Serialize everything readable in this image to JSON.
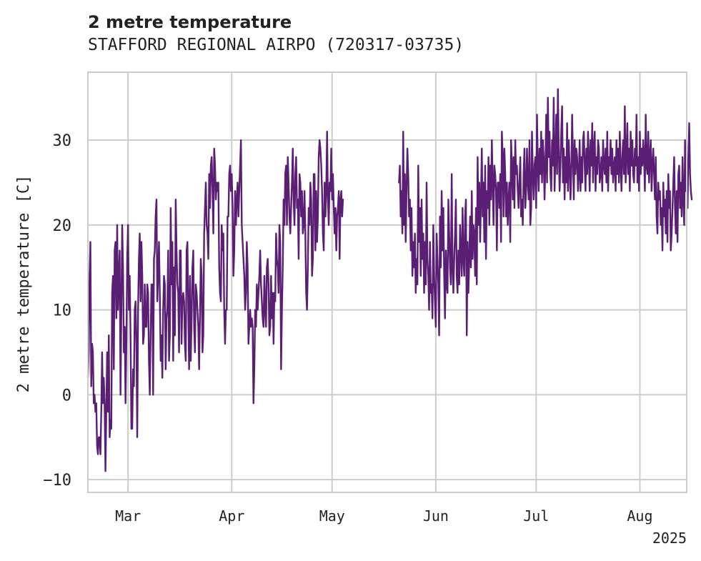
{
  "chart_data": {
    "type": "line",
    "title": "2 metre temperature",
    "subtitle": "STAFFORD REGIONAL AIRPO (720317-03735)",
    "xlabel": "",
    "ylabel": "2 metre temperature [C]",
    "xlim": [
      "2025-02-17",
      "2025-08-15"
    ],
    "ylim": [
      -11.5,
      38
    ],
    "yticks": [
      -10,
      0,
      10,
      20,
      30
    ],
    "ytick_labels": [
      "−10",
      "0",
      "10",
      "20",
      "30"
    ],
    "xticks": [
      {
        "date": "2025-03-01",
        "label": "Mar"
      },
      {
        "date": "2025-04-01",
        "label": "Apr"
      },
      {
        "date": "2025-05-01",
        "label": "May"
      },
      {
        "date": "2025-06-01",
        "label": "Jun"
      },
      {
        "date": "2025-07-01",
        "label": "Jul"
      },
      {
        "date": "2025-08-01",
        "label": "Aug"
      }
    ],
    "year_label": "2025",
    "grid": true,
    "line_color": "#5a1f74",
    "series": [
      {
        "name": "2 metre temperature",
        "segments": [
          {
            "start": "2025-02-17T00:00",
            "step_hours": 6,
            "values": [
              2,
              5,
              14,
              18,
              1,
              6,
              5,
              -1,
              0,
              -2,
              -1,
              -6,
              -7,
              -5,
              -5,
              -7,
              -2,
              5,
              -1,
              2,
              -1,
              -9,
              -2,
              5,
              -2,
              7,
              -5,
              -3,
              -4,
              12,
              14,
              3,
              17,
              18,
              9,
              20,
              10,
              14,
              17,
              0,
              10,
              20,
              15,
              5,
              8,
              -1,
              6,
              16,
              20,
              10,
              14,
              7,
              -4,
              -4,
              3,
              1,
              10,
              11,
              6,
              -5,
              10,
              16,
              19,
              11,
              18,
              14,
              6,
              7,
              13,
              8,
              8,
              13,
              12,
              4,
              0,
              7,
              13,
              13,
              0,
              16,
              17,
              21,
              23,
              11,
              14,
              18,
              12,
              4,
              7,
              2,
              10,
              14,
              13,
              3,
              9,
              10,
              17,
              4,
              7,
              22,
              13,
              18,
              4,
              15,
              7,
              23,
              17,
              13,
              12,
              5,
              17,
              17,
              6,
              11,
              12,
              11,
              6,
              4,
              17,
              18,
              10,
              3,
              14,
              4,
              9,
              15,
              17,
              8,
              5,
              13,
              12,
              10,
              8,
              3,
              9,
              16,
              14,
              5,
              7,
              19,
              22,
              25,
              20,
              19,
              16,
              26,
              22,
              27,
              28,
              24,
              19,
              29,
              27,
              23,
              25,
              24,
              25,
              15,
              12,
              11,
              20,
              17,
              19,
              10,
              6,
              10,
              10,
              21,
              21,
              26,
              27,
              24,
              26,
              22,
              14,
              17,
              24,
              20,
              23,
              25,
              21,
              24,
              27,
              30,
              20,
              18,
              16,
              14,
              10,
              12,
              18,
              15,
              6,
              8,
              10,
              8,
              9,
              8,
              -1,
              3,
              10,
              8,
              13,
              10,
              12,
              14,
              17,
              13,
              11,
              9,
              8,
              14,
              10,
              8,
              15,
              16,
              13,
              7,
              8,
              14,
              9,
              12,
              6,
              12,
              11,
              19,
              16,
              15,
              12,
              20,
              18,
              3,
              10,
              15,
              23,
              20,
              26,
              27,
              20,
              28,
              25,
              21,
              19,
              22,
              25,
              29,
              23,
              20,
              26,
              28,
              22,
              23,
              16,
              26,
              25,
              21,
              24,
              19,
              20,
              24,
              19,
              12,
              10,
              15,
              22,
              20,
              25,
              23,
              14,
              16,
              26,
              26,
              17,
              24,
              18,
              21,
              28,
              30,
              29,
              27,
              24,
              19,
              17,
              25,
              21,
              24,
              31,
              23,
              20,
              25,
              24,
              29,
              23,
              26,
              22,
              19,
              22,
              17,
              21,
              22,
              24,
              16,
              23,
              24,
              21,
              23
            ]
          },
          {
            "start": "2025-05-21T00:00",
            "step_hours": 6,
            "values": [
              25,
              27,
              21,
              24,
              19,
              31,
              20,
              26,
              18,
              24,
              29,
              26,
              21,
              23,
              17,
              22,
              14,
              18,
              15,
              19,
              12,
              16,
              13,
              27,
              18,
              22,
              14,
              23,
              16,
              19,
              12,
              18,
              13,
              25,
              16,
              14,
              10,
              18,
              12,
              13,
              9,
              20,
              14,
              11,
              8,
              19,
              16,
              13,
              7,
              21,
              15,
              24,
              17,
              22,
              14,
              9,
              17,
              13,
              12,
              23,
              19,
              15,
              13,
              26,
              15,
              12,
              16,
              19,
              23,
              14,
              12,
              17,
              13,
              20,
              17,
              14,
              22,
              16,
              14,
              21,
              23,
              7,
              18,
              12,
              16,
              21,
              15,
              24,
              16,
              20,
              19,
              14,
              22,
              13,
              28,
              20,
              25,
              18,
              23,
              29,
              21,
              25,
              18,
              27,
              16,
              24,
              22,
              28,
              20,
              27,
              23,
              30,
              25,
              20,
              27,
              26,
              24,
              17,
              25,
              25,
              22,
              26,
              18,
              31,
              28,
              21,
              29,
              26,
              21,
              25,
              20,
              23,
              25,
              18,
              30,
              27,
              23,
              28,
              22,
              30,
              26,
              27,
              24,
              22,
              25,
              28,
              21,
              23,
              20,
              26,
              29,
              22,
              24,
              29,
              25,
              23,
              30,
              20,
              22,
              31,
              26,
              23,
              27,
              28,
              22,
              33,
              27,
              24,
              29,
              26,
              31,
              25,
              30,
              28,
              23,
              27,
              33,
              25,
              35,
              28,
              31,
              26,
              24,
              30,
              27,
              35,
              24,
              28,
              33,
              26,
              36,
              29,
              24,
              27,
              31,
              34,
              25,
              29,
              23,
              28,
              25,
              32,
              24,
              30,
              27,
              23,
              26,
              33,
              28,
              23,
              30,
              26,
              29,
              28,
              24,
              26,
              30,
              24,
              28,
              25,
              30,
              31,
              27,
              24,
              29,
              26,
              31,
              28,
              24,
              30,
              27,
              32,
              25,
              29,
              31,
              24,
              28,
              26,
              30,
              29,
              25,
              26,
              28,
              24,
              30,
              27,
              26,
              29,
              25,
              31,
              24,
              28,
              27,
              30,
              26,
              29,
              25,
              27,
              28,
              24,
              30,
              26,
              29,
              25,
              31,
              27,
              24,
              28,
              30,
              26,
              34,
              25,
              28,
              32,
              26,
              29,
              24,
              31,
              27,
              30,
              26,
              25,
              29,
              27,
              33,
              25,
              28,
              24,
              31,
              26,
              29,
              27,
              30,
              28,
              24,
              33,
              27,
              26,
              31,
              25,
              28,
              30,
              24,
              27,
              29,
              26,
              23,
              28,
              21,
              19,
              25,
              23,
              24,
              20,
              22,
              17,
              25,
              21,
              23,
              19,
              24,
              18,
              26,
              22,
              24,
              17,
              19,
              22,
              25,
              28,
              22,
              19,
              24,
              18,
              26,
              27,
              22,
              25,
              21,
              28,
              23,
              20,
              30,
              24,
              26,
              22,
              28,
              32,
              26,
              24,
              23
            ]
          }
        ]
      }
    ]
  }
}
